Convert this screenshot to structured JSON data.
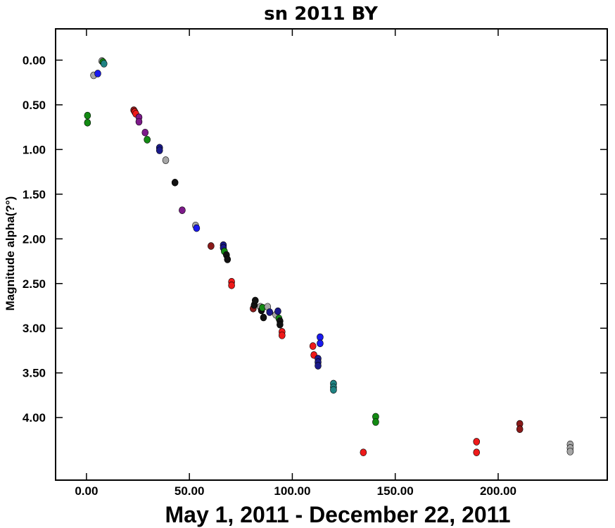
{
  "chart_data": {
    "type": "scatter",
    "title": "sn 2011 BY",
    "xlabel": "May 1, 2011 - December 22, 2011",
    "ylabel": "Magnitude alpha(?°)",
    "xlim": [
      -15,
      253
    ],
    "ylim": [
      4.7,
      -0.35
    ],
    "y_inverted": true,
    "grid": false,
    "legend": "none",
    "x_ticks": [
      0,
      50,
      100,
      150,
      200
    ],
    "x_tick_labels": [
      "0.00",
      "50.00",
      "100.00",
      "150.00",
      "200.00"
    ],
    "y_ticks": [
      0,
      0.5,
      1,
      1.5,
      2,
      2.5,
      3,
      3.5,
      4
    ],
    "y_tick_labels": [
      "0.00",
      "0.50",
      "1.00",
      "1.50",
      "2.00",
      "2.50",
      "3.00",
      "3.50",
      "4.00"
    ],
    "colors": {
      "green": "#138a13",
      "gray": "#a6a6a6",
      "blue": "#1a1aee",
      "teal": "#1f8383",
      "red": "#ee1a1a",
      "purple": "#7d1a8a",
      "navy": "#1a1a8a",
      "black": "#111111",
      "darkred": "#8a1a1a"
    },
    "points": [
      {
        "x": 0.5,
        "y": 0.62,
        "c": "green"
      },
      {
        "x": 0.5,
        "y": 0.7,
        "c": "green"
      },
      {
        "x": 3.5,
        "y": 0.17,
        "c": "gray"
      },
      {
        "x": 5.5,
        "y": 0.15,
        "c": "blue"
      },
      {
        "x": 7.5,
        "y": 0.01,
        "c": "gray"
      },
      {
        "x": 8.0,
        "y": 0.02,
        "c": "green"
      },
      {
        "x": 8.5,
        "y": 0.04,
        "c": "teal"
      },
      {
        "x": 23.0,
        "y": 0.56,
        "c": "darkred"
      },
      {
        "x": 23.5,
        "y": 0.58,
        "c": "red"
      },
      {
        "x": 24.0,
        "y": 0.6,
        "c": "red"
      },
      {
        "x": 25.5,
        "y": 0.64,
        "c": "purple"
      },
      {
        "x": 25.5,
        "y": 0.69,
        "c": "purple"
      },
      {
        "x": 28.5,
        "y": 0.81,
        "c": "purple"
      },
      {
        "x": 29.5,
        "y": 0.89,
        "c": "green"
      },
      {
        "x": 35.5,
        "y": 0.98,
        "c": "navy"
      },
      {
        "x": 35.5,
        "y": 1.01,
        "c": "navy"
      },
      {
        "x": 38.5,
        "y": 1.12,
        "c": "gray"
      },
      {
        "x": 43.0,
        "y": 1.37,
        "c": "black"
      },
      {
        "x": 46.5,
        "y": 1.68,
        "c": "purple"
      },
      {
        "x": 53.0,
        "y": 1.85,
        "c": "gray"
      },
      {
        "x": 53.5,
        "y": 1.88,
        "c": "blue"
      },
      {
        "x": 60.5,
        "y": 2.08,
        "c": "darkred"
      },
      {
        "x": 66.5,
        "y": 2.07,
        "c": "navy"
      },
      {
        "x": 66.5,
        "y": 2.1,
        "c": "navy"
      },
      {
        "x": 67.0,
        "y": 2.14,
        "c": "green"
      },
      {
        "x": 68.0,
        "y": 2.18,
        "c": "black"
      },
      {
        "x": 68.5,
        "y": 2.23,
        "c": "black"
      },
      {
        "x": 70.5,
        "y": 2.48,
        "c": "red"
      },
      {
        "x": 70.5,
        "y": 2.52,
        "c": "red"
      },
      {
        "x": 81.0,
        "y": 2.78,
        "c": "darkred"
      },
      {
        "x": 81.5,
        "y": 2.74,
        "c": "black"
      },
      {
        "x": 82.0,
        "y": 2.69,
        "c": "black"
      },
      {
        "x": 84.5,
        "y": 2.76,
        "c": "gray"
      },
      {
        "x": 85.0,
        "y": 2.8,
        "c": "black"
      },
      {
        "x": 85.5,
        "y": 2.77,
        "c": "green"
      },
      {
        "x": 86.0,
        "y": 2.88,
        "c": "black"
      },
      {
        "x": 88.0,
        "y": 2.76,
        "c": "gray"
      },
      {
        "x": 89.0,
        "y": 2.82,
        "c": "navy"
      },
      {
        "x": 92.0,
        "y": 2.85,
        "c": "gray"
      },
      {
        "x": 93.0,
        "y": 2.81,
        "c": "navy"
      },
      {
        "x": 93.5,
        "y": 2.89,
        "c": "green"
      },
      {
        "x": 94.0,
        "y": 2.92,
        "c": "black"
      },
      {
        "x": 94.0,
        "y": 2.96,
        "c": "black"
      },
      {
        "x": 95.0,
        "y": 3.04,
        "c": "red"
      },
      {
        "x": 95.0,
        "y": 3.08,
        "c": "red"
      },
      {
        "x": 110.0,
        "y": 3.2,
        "c": "red"
      },
      {
        "x": 110.5,
        "y": 3.3,
        "c": "red"
      },
      {
        "x": 112.5,
        "y": 3.34,
        "c": "navy"
      },
      {
        "x": 112.5,
        "y": 3.38,
        "c": "navy"
      },
      {
        "x": 112.5,
        "y": 3.42,
        "c": "navy"
      },
      {
        "x": 113.5,
        "y": 3.1,
        "c": "blue"
      },
      {
        "x": 113.5,
        "y": 3.17,
        "c": "blue"
      },
      {
        "x": 120.0,
        "y": 3.62,
        "c": "teal"
      },
      {
        "x": 120.0,
        "y": 3.66,
        "c": "teal"
      },
      {
        "x": 120.0,
        "y": 3.69,
        "c": "teal"
      },
      {
        "x": 134.5,
        "y": 4.39,
        "c": "red"
      },
      {
        "x": 140.5,
        "y": 3.99,
        "c": "green"
      },
      {
        "x": 140.5,
        "y": 4.05,
        "c": "green"
      },
      {
        "x": 189.5,
        "y": 4.27,
        "c": "red"
      },
      {
        "x": 189.5,
        "y": 4.39,
        "c": "red"
      },
      {
        "x": 210.5,
        "y": 4.07,
        "c": "darkred"
      },
      {
        "x": 210.5,
        "y": 4.13,
        "c": "darkred"
      },
      {
        "x": 235.0,
        "y": 4.3,
        "c": "gray"
      },
      {
        "x": 235.0,
        "y": 4.34,
        "c": "gray"
      },
      {
        "x": 235.0,
        "y": 4.38,
        "c": "gray"
      }
    ]
  }
}
